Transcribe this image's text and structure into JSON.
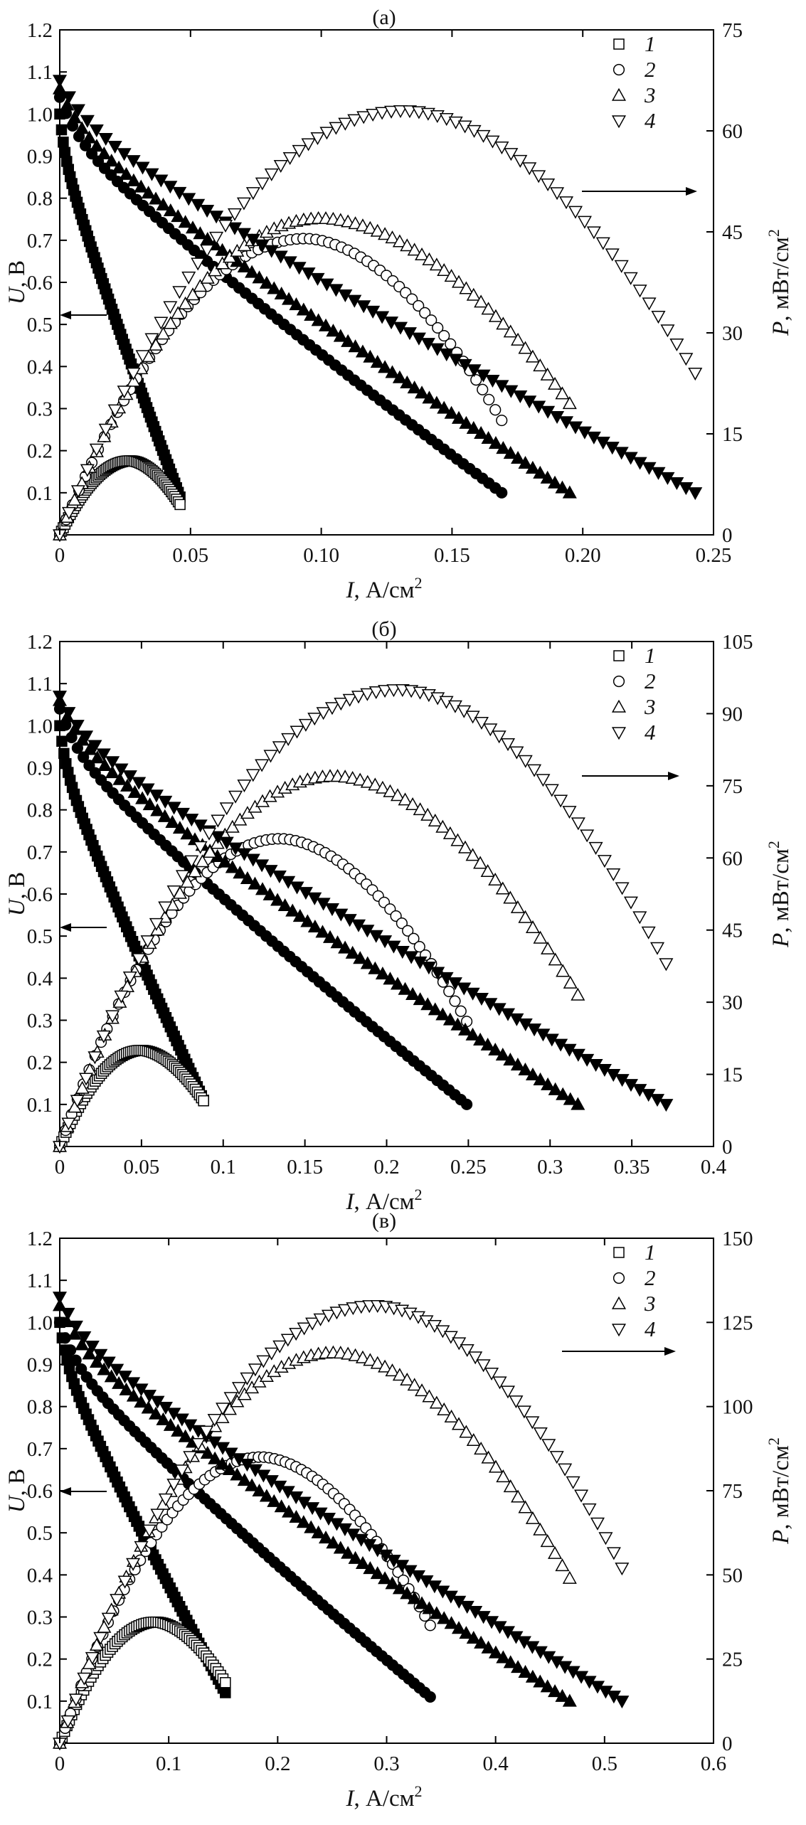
{
  "figure": {
    "markers": {
      "1": {
        "shape": "square"
      },
      "2": {
        "shape": "circle"
      },
      "3": {
        "shape": "triangle-up"
      },
      "4": {
        "shape": "triangle-down"
      }
    }
  },
  "chart_data": [
    {
      "type": "scatter",
      "panel_label": "(а)",
      "xlabel_letter": "I",
      "xlabel_unit": ", А/см",
      "xlabel_sup": "2",
      "ylabel_letter": "U",
      "ylabel_unit": ", В",
      "y2label_letter": "P",
      "y2label_unit": ", мВт/см",
      "y2label_sup": "2",
      "xlim": [
        0,
        0.25
      ],
      "ylim": [
        0,
        1.2
      ],
      "y2lim": [
        0,
        75
      ],
      "x_ticks": [
        0,
        0.05,
        0.1,
        0.15,
        0.2,
        0.25
      ],
      "x_tick_labels": [
        "0",
        "0.05",
        "0.10",
        "0.15",
        "0.20",
        "0.25"
      ],
      "y_ticks": [
        0.1,
        0.2,
        0.3,
        0.4,
        0.5,
        0.6,
        0.7,
        0.8,
        0.9,
        1.0,
        1.1,
        1.2
      ],
      "y_tick_labels": [
        "0.1",
        "0.2",
        "0.3",
        "0.4",
        "0.5",
        "0.6",
        "0.7",
        "0.8",
        "0.9",
        "1.0",
        "1.1",
        "1.2"
      ],
      "y2_ticks": [
        0,
        15,
        30,
        45,
        60,
        75
      ],
      "y2_tick_labels": [
        "0",
        "15",
        "30",
        "45",
        "60",
        "75"
      ],
      "legend": [
        "1",
        "2",
        "3",
        "4"
      ],
      "series": [
        {
          "name": "1",
          "u_start": 1.0,
          "i_max": 0.046,
          "u_end": 0.09,
          "p_peak": 11,
          "i_peak": 0.027,
          "p_end": 4.5
        },
        {
          "name": "2",
          "u_start": 1.04,
          "i_max": 0.169,
          "u_end": 0.1,
          "p_peak": 44,
          "i_peak": 0.094,
          "p_end": 17
        },
        {
          "name": "3",
          "u_start": 1.06,
          "i_max": 0.195,
          "u_end": 0.1,
          "p_peak": 47,
          "i_peak": 0.1,
          "p_end": 19.5
        },
        {
          "name": "4",
          "u_start": 1.08,
          "i_max": 0.243,
          "u_end": 0.1,
          "p_peak": 63,
          "i_peak": 0.132,
          "p_end": 24
        }
      ]
    },
    {
      "type": "scatter",
      "panel_label": "(б)",
      "xlabel_letter": "I",
      "xlabel_unit": ", А/см",
      "xlabel_sup": "2",
      "ylabel_letter": "U",
      "ylabel_unit": ", В",
      "y2label_letter": "P",
      "y2label_unit": ", мВт/см",
      "y2label_sup": "2",
      "xlim": [
        0,
        0.4
      ],
      "ylim": [
        0,
        1.2
      ],
      "y2lim": [
        0,
        105
      ],
      "x_ticks": [
        0,
        0.05,
        0.1,
        0.15,
        0.2,
        0.25,
        0.3,
        0.35,
        0.4
      ],
      "x_tick_labels": [
        "0",
        "0.05",
        "0.1",
        "0.15",
        "0.2",
        "0.25",
        "0.3",
        "0.35",
        "0.4"
      ],
      "y_ticks": [
        0.1,
        0.2,
        0.3,
        0.4,
        0.5,
        0.6,
        0.7,
        0.8,
        0.9,
        1.0,
        1.1,
        1.2
      ],
      "y_tick_labels": [
        "0.1",
        "0.2",
        "0.3",
        "0.4",
        "0.5",
        "0.6",
        "0.7",
        "0.8",
        "0.9",
        "1.0",
        "1.1",
        "1.2"
      ],
      "y2_ticks": [
        0,
        15,
        30,
        45,
        60,
        75,
        90,
        105
      ],
      "y2_tick_labels": [
        "0",
        "15",
        "30",
        "45",
        "60",
        "75",
        "90",
        "105"
      ],
      "legend": [
        "1",
        "2",
        "3",
        "4"
      ],
      "series": [
        {
          "name": "1",
          "u_start": 1.0,
          "i_max": 0.088,
          "u_end": 0.11,
          "p_peak": 20,
          "i_peak": 0.05,
          "p_end": 9.5
        },
        {
          "name": "2",
          "u_start": 1.04,
          "i_max": 0.249,
          "u_end": 0.1,
          "p_peak": 64,
          "i_peak": 0.135,
          "p_end": 26
        },
        {
          "name": "3",
          "u_start": 1.06,
          "i_max": 0.317,
          "u_end": 0.1,
          "p_peak": 77,
          "i_peak": 0.168,
          "p_end": 31.5
        },
        {
          "name": "4",
          "u_start": 1.07,
          "i_max": 0.371,
          "u_end": 0.1,
          "p_peak": 95,
          "i_peak": 0.208,
          "p_end": 38
        }
      ]
    },
    {
      "type": "scatter",
      "panel_label": "(в)",
      "xlabel_letter": "I",
      "xlabel_unit": ", А/см",
      "xlabel_sup": "2",
      "ylabel_letter": "U",
      "ylabel_unit": ", В",
      "y2label_letter": "P",
      "y2label_unit": ", мВт/см",
      "y2label_sup": "2",
      "xlim": [
        0,
        0.6
      ],
      "ylim": [
        0,
        1.2
      ],
      "y2lim": [
        0,
        150
      ],
      "x_ticks": [
        0,
        0.1,
        0.2,
        0.3,
        0.4,
        0.5,
        0.6
      ],
      "x_tick_labels": [
        "0",
        "0.1",
        "0.2",
        "0.3",
        "0.4",
        "0.5",
        "0.6"
      ],
      "y_ticks": [
        0.1,
        0.2,
        0.3,
        0.4,
        0.5,
        0.6,
        0.7,
        0.8,
        0.9,
        1.0,
        1.1,
        1.2
      ],
      "y_tick_labels": [
        "0.1",
        "0.2",
        "0.3",
        "0.4",
        "0.5",
        "0.6",
        "0.7",
        "0.8",
        "0.9",
        "1.0",
        "1.1",
        "1.2"
      ],
      "y2_ticks": [
        0,
        25,
        50,
        75,
        100,
        125,
        150
      ],
      "y2_tick_labels": [
        "0",
        "25",
        "50",
        "75",
        "100",
        "125",
        "150"
      ],
      "legend": [
        "1",
        "2",
        "3",
        "4"
      ],
      "series": [
        {
          "name": "1",
          "u_start": 1.0,
          "i_max": 0.152,
          "u_end": 0.12,
          "p_peak": 36,
          "i_peak": 0.088,
          "p_end": 18
        },
        {
          "name": "2",
          "u_start": 1.0,
          "i_max": 0.34,
          "u_end": 0.11,
          "p_peak": 85,
          "i_peak": 0.185,
          "p_end": 35
        },
        {
          "name": "3",
          "u_start": 1.04,
          "i_max": 0.468,
          "u_end": 0.1,
          "p_peak": 116,
          "i_peak": 0.252,
          "p_end": 49
        },
        {
          "name": "4",
          "u_start": 1.06,
          "i_max": 0.516,
          "u_end": 0.1,
          "p_peak": 130,
          "i_peak": 0.29,
          "p_end": 52
        }
      ]
    }
  ]
}
